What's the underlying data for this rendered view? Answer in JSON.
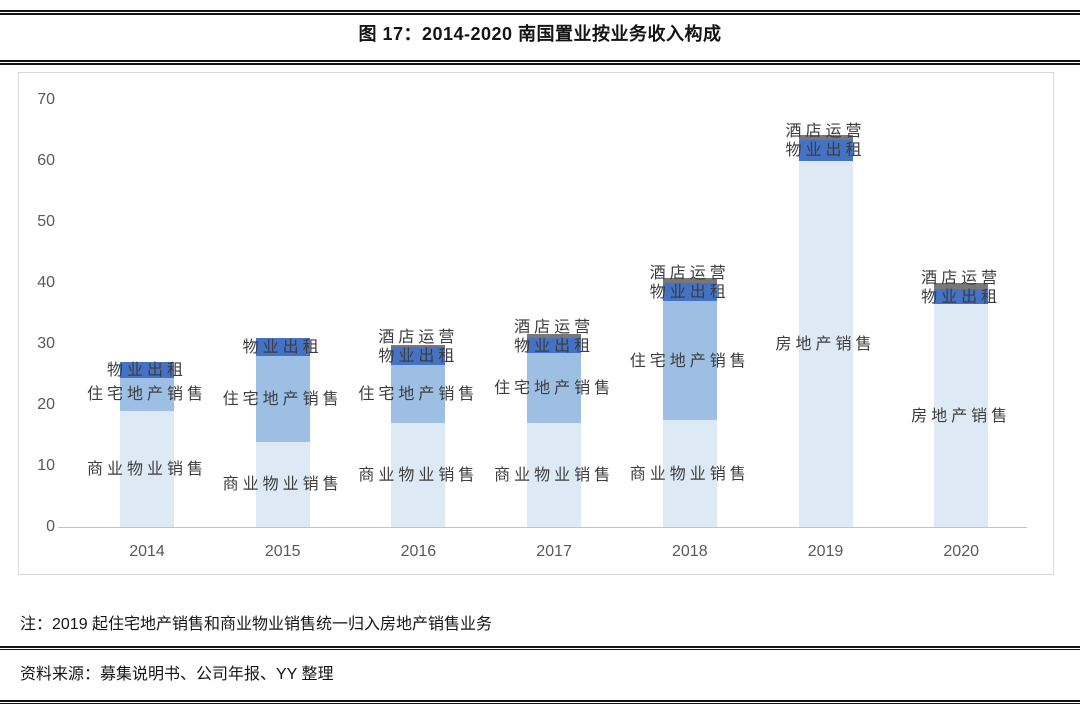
{
  "page": {
    "title": "图 17：2014-2020 南国置业按业务收入构成",
    "note": "注：2019 起住宅地产销售和商业物业销售统一归入房地产销售业务",
    "source": "资料来源：募集说明书、公司年报、YY 整理"
  },
  "colors": {
    "light": "#dde9f5",
    "medium": "#9cbfe3",
    "dark": "#4472c4",
    "gray": "#787878",
    "axis_line": "#c3c3c3",
    "tick_text": "#595959",
    "label_text": "#3d3d3d",
    "frame_border": "#d9d9d9",
    "rule": "#141414"
  },
  "chart_data": {
    "type": "bar",
    "subtype": "stacked",
    "title": "图 17：2014-2020 南国置业按业务收入构成",
    "categories": [
      "2014",
      "2015",
      "2016",
      "2017",
      "2018",
      "2019",
      "2020"
    ],
    "series": [
      {
        "name": "商业物业销售",
        "color_key": "light",
        "values": [
          19,
          14,
          17,
          17,
          17.5,
          0,
          0
        ]
      },
      {
        "name": "住宅地产销售",
        "color_key": "medium",
        "values": [
          5.5,
          14,
          9.5,
          11.5,
          19.5,
          0,
          0
        ]
      },
      {
        "name": "房地产销售",
        "color_key": "light",
        "values": [
          0,
          0,
          0,
          0,
          0,
          60,
          36.5
        ]
      },
      {
        "name": "物业出租",
        "color_key": "dark",
        "values": [
          2.5,
          3,
          3,
          2.5,
          3,
          3.5,
          2.5
        ]
      },
      {
        "name": "酒店运营",
        "color_key": "gray",
        "values": [
          0,
          0,
          0.3,
          0.7,
          0.8,
          0.8,
          1
        ]
      }
    ],
    "totals": [
      27,
      31,
      29.8,
      31.7,
      40.8,
      64.3,
      40
    ],
    "xlabel": "",
    "ylabel": "",
    "ylim": [
      0,
      70
    ],
    "yticks": [
      0,
      10,
      20,
      30,
      40,
      50,
      60,
      70
    ],
    "grid": false,
    "legend": "none (labels drawn on segments)"
  }
}
